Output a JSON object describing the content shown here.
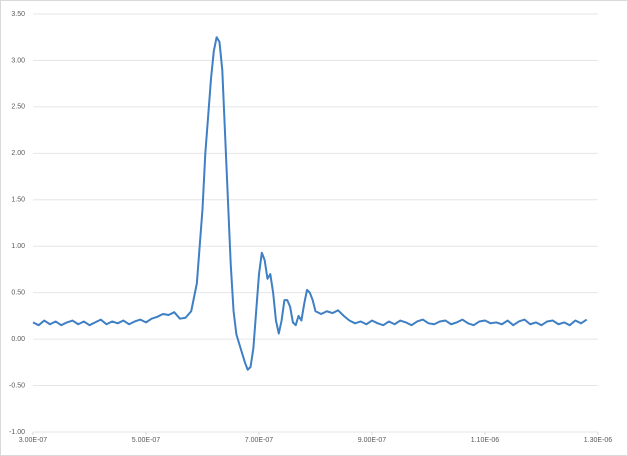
{
  "chart_data": {
    "type": "line",
    "color": "#3f7fc4",
    "grid": true,
    "xlim": [
      3e-07,
      1.3e-06
    ],
    "xticks": [
      {
        "value": 3e-07,
        "label": "3.00E-07"
      },
      {
        "value": 5e-07,
        "label": "5.00E-07"
      },
      {
        "value": 7e-07,
        "label": "7.00E-07"
      },
      {
        "value": 9e-07,
        "label": "9.00E-07"
      },
      {
        "value": 1.1e-06,
        "label": "1.10E-06"
      },
      {
        "value": 1.3e-06,
        "label": "1.30E-06"
      }
    ],
    "ylim": [
      -1,
      3.5
    ],
    "yticks": [
      {
        "value": 3.5,
        "label": "3.50"
      },
      {
        "value": 3,
        "label": "3.00"
      },
      {
        "value": 2.5,
        "label": "2.50"
      },
      {
        "value": 2,
        "label": "2.00"
      },
      {
        "value": 1.5,
        "label": "1.50"
      },
      {
        "value": 1,
        "label": "1.00"
      },
      {
        "value": 0.5,
        "label": "0.50"
      },
      {
        "value": 0,
        "label": "0.00"
      },
      {
        "value": -0.5,
        "label": "-0.50"
      },
      {
        "value": -1,
        "label": "-1.00"
      }
    ],
    "x": [
      3e-07,
      3.1e-07,
      3.2e-07,
      3.3e-07,
      3.4e-07,
      3.5e-07,
      3.6e-07,
      3.7e-07,
      3.8e-07,
      3.9e-07,
      4e-07,
      4.1e-07,
      4.2e-07,
      4.3e-07,
      4.4e-07,
      4.5e-07,
      4.6e-07,
      4.7e-07,
      4.8e-07,
      4.9e-07,
      5e-07,
      5.1e-07,
      5.2e-07,
      5.3e-07,
      5.4e-07,
      5.5e-07,
      5.6e-07,
      5.7e-07,
      5.8e-07,
      5.9e-07,
      6e-07,
      6.05e-07,
      6.1e-07,
      6.15e-07,
      6.2e-07,
      6.25e-07,
      6.3e-07,
      6.35e-07,
      6.4e-07,
      6.45e-07,
      6.5e-07,
      6.55e-07,
      6.6e-07,
      6.65e-07,
      6.7e-07,
      6.75e-07,
      6.8e-07,
      6.85e-07,
      6.9e-07,
      6.95e-07,
      7e-07,
      7.05e-07,
      7.1e-07,
      7.15e-07,
      7.2e-07,
      7.25e-07,
      7.3e-07,
      7.35e-07,
      7.4e-07,
      7.45e-07,
      7.5e-07,
      7.55e-07,
      7.6e-07,
      7.65e-07,
      7.7e-07,
      7.75e-07,
      7.8e-07,
      7.85e-07,
      7.9e-07,
      7.95e-07,
      8e-07,
      8.1e-07,
      8.2e-07,
      8.3e-07,
      8.4e-07,
      8.5e-07,
      8.6e-07,
      8.7e-07,
      8.8e-07,
      8.9e-07,
      9e-07,
      9.1e-07,
      9.2e-07,
      9.3e-07,
      9.4e-07,
      9.5e-07,
      9.6e-07,
      9.7e-07,
      9.8e-07,
      9.9e-07,
      1e-06,
      1.01e-06,
      1.02e-06,
      1.03e-06,
      1.04e-06,
      1.05e-06,
      1.06e-06,
      1.07e-06,
      1.08e-06,
      1.09e-06,
      1.1e-06,
      1.11e-06,
      1.12e-06,
      1.13e-06,
      1.14e-06,
      1.15e-06,
      1.16e-06,
      1.17e-06,
      1.18e-06,
      1.19e-06,
      1.2e-06,
      1.21e-06,
      1.22e-06,
      1.23e-06,
      1.24e-06,
      1.25e-06,
      1.26e-06,
      1.27e-06,
      1.28e-06
    ],
    "values": [
      0.18,
      0.15,
      0.2,
      0.16,
      0.19,
      0.15,
      0.18,
      0.2,
      0.16,
      0.19,
      0.15,
      0.18,
      0.21,
      0.16,
      0.19,
      0.17,
      0.2,
      0.16,
      0.19,
      0.21,
      0.18,
      0.22,
      0.24,
      0.27,
      0.26,
      0.29,
      0.22,
      0.23,
      0.3,
      0.6,
      1.4,
      2.0,
      2.4,
      2.8,
      3.1,
      3.25,
      3.2,
      2.9,
      2.2,
      1.5,
      0.8,
      0.3,
      0.05,
      -0.05,
      -0.15,
      -0.25,
      -0.33,
      -0.3,
      -0.1,
      0.3,
      0.7,
      0.93,
      0.85,
      0.65,
      0.7,
      0.5,
      0.2,
      0.06,
      0.2,
      0.42,
      0.42,
      0.35,
      0.18,
      0.15,
      0.25,
      0.2,
      0.38,
      0.53,
      0.5,
      0.42,
      0.3,
      0.27,
      0.3,
      0.28,
      0.31,
      0.25,
      0.2,
      0.17,
      0.19,
      0.16,
      0.2,
      0.17,
      0.15,
      0.19,
      0.16,
      0.2,
      0.18,
      0.15,
      0.19,
      0.21,
      0.17,
      0.16,
      0.19,
      0.2,
      0.16,
      0.18,
      0.21,
      0.17,
      0.15,
      0.19,
      0.2,
      0.17,
      0.18,
      0.16,
      0.2,
      0.15,
      0.19,
      0.21,
      0.16,
      0.18,
      0.15,
      0.19,
      0.2,
      0.16,
      0.18,
      0.15,
      0.2,
      0.17,
      0.21
    ]
  }
}
